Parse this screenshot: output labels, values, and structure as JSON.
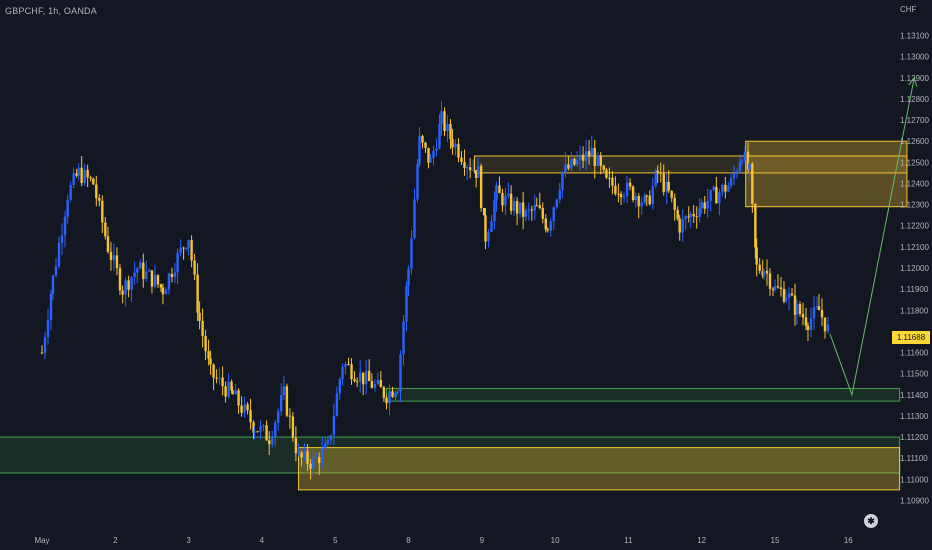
{
  "header": {
    "symbol_title": "GBPCHF, 1h, OANDA",
    "currency": "CHF"
  },
  "price_axis": {
    "ticks": [
      "1.13100",
      "1.13000",
      "1.12900",
      "1.12800",
      "1.12700",
      "1.12600",
      "1.12500",
      "1.12400",
      "1.12300",
      "1.12200",
      "1.12100",
      "1.12000",
      "1.11900",
      "1.11800",
      "1.11600",
      "1.11500",
      "1.11400",
      "1.11300",
      "1.11200",
      "1.11100",
      "1.11000",
      "1.10900"
    ],
    "last_price": "1.11688"
  },
  "time_axis": {
    "ticks": [
      "May",
      "2",
      "3",
      "4",
      "5",
      "8",
      "9",
      "10",
      "11",
      "12",
      "15",
      "16"
    ]
  },
  "colors": {
    "background": "#131722",
    "bull_candle": "#2962ff",
    "bear_candle": "#f7c430",
    "supply_zone": "#f7c430",
    "demand_zone": "#43a047",
    "arrow": "#66bb6a",
    "last_price": "#fdd835"
  },
  "chart_data": {
    "type": "candlestick",
    "symbol": "GBPCHF",
    "timeframe": "1h",
    "x": [
      "May",
      "2",
      "3",
      "4",
      "5",
      "8",
      "9",
      "10",
      "11",
      "12",
      "15",
      "16"
    ],
    "ylim": [
      1.1085,
      1.1315
    ],
    "last_price": 1.11688,
    "path_close": [
      [
        0,
        1.116
      ],
      [
        0.15,
        1.1195
      ],
      [
        0.35,
        1.1235
      ],
      [
        0.5,
        1.1245
      ],
      [
        0.7,
        1.124
      ],
      [
        0.9,
        1.121
      ],
      [
        1.1,
        1.119
      ],
      [
        1.3,
        1.12
      ],
      [
        1.5,
        1.1195
      ],
      [
        1.65,
        1.119
      ],
      [
        1.85,
        1.1205
      ],
      [
        2.0,
        1.1215
      ],
      [
        2.15,
        1.1175
      ],
      [
        2.3,
        1.115
      ],
      [
        2.6,
        1.114
      ],
      [
        2.9,
        1.1125
      ],
      [
        3.1,
        1.112
      ],
      [
        3.3,
        1.114
      ],
      [
        3.5,
        1.111
      ],
      [
        3.7,
        1.1108
      ],
      [
        3.9,
        1.1115
      ],
      [
        4.1,
        1.1155
      ],
      [
        4.3,
        1.115
      ],
      [
        4.5,
        1.1145
      ],
      [
        4.7,
        1.114
      ],
      [
        4.85,
        1.1145
      ],
      [
        5.0,
        1.12
      ],
      [
        5.15,
        1.126
      ],
      [
        5.3,
        1.125
      ],
      [
        5.45,
        1.127
      ],
      [
        5.6,
        1.126
      ],
      [
        5.8,
        1.125
      ],
      [
        5.95,
        1.1245
      ],
      [
        6.05,
        1.1215
      ],
      [
        6.2,
        1.1235
      ],
      [
        6.4,
        1.123
      ],
      [
        6.6,
        1.1225
      ],
      [
        6.75,
        1.1228
      ],
      [
        6.9,
        1.122
      ],
      [
        7.1,
        1.1245
      ],
      [
        7.3,
        1.125
      ],
      [
        7.5,
        1.1255
      ],
      [
        7.7,
        1.124
      ],
      [
        7.9,
        1.1238
      ],
      [
        8.1,
        1.1235
      ],
      [
        8.25,
        1.123
      ],
      [
        8.4,
        1.1245
      ],
      [
        8.55,
        1.1235
      ],
      [
        8.7,
        1.122
      ],
      [
        8.85,
        1.1225
      ],
      [
        9.0,
        1.123
      ],
      [
        9.2,
        1.1235
      ],
      [
        9.4,
        1.124
      ],
      [
        9.55,
        1.1255
      ],
      [
        9.65,
        1.1245
      ],
      [
        9.75,
        1.12
      ],
      [
        9.85,
        1.12
      ],
      [
        10.0,
        1.119
      ],
      [
        10.15,
        1.1188
      ],
      [
        10.3,
        1.118
      ],
      [
        10.45,
        1.1175
      ],
      [
        10.6,
        1.118
      ],
      [
        10.75,
        1.11688
      ]
    ],
    "zones": [
      {
        "kind": "supply",
        "x0": 9.6,
        "x1": 11.8,
        "y0": 1.1229,
        "y1": 1.126
      },
      {
        "kind": "supply-line",
        "x0": 5.9,
        "x1": 11.8,
        "y0": 1.1245,
        "y1": 1.1253
      },
      {
        "kind": "demand",
        "x0": 4.7,
        "x1": 11.7,
        "y0": 1.1137,
        "y1": 1.1143
      },
      {
        "kind": "demand-wide",
        "x0": -0.6,
        "x1": 11.7,
        "y0": 1.1103,
        "y1": 1.112
      },
      {
        "kind": "supply-low",
        "x0": 3.5,
        "x1": 11.7,
        "y0": 1.1095,
        "y1": 1.1115
      }
    ],
    "projection": [
      [
        10.75,
        1.11688
      ],
      [
        11.05,
        1.114
      ],
      [
        11.9,
        1.129
      ]
    ]
  }
}
